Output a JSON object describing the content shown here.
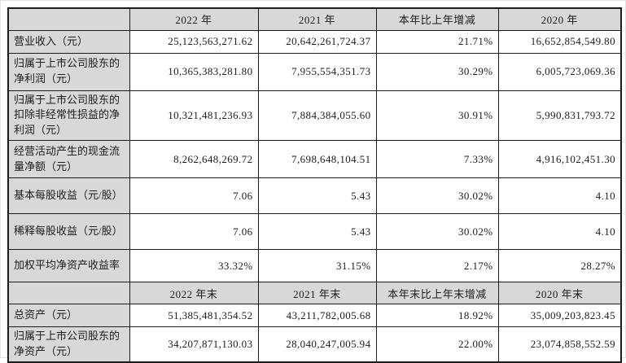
{
  "table": {
    "title_hint": "financial-summary-table",
    "colors": {
      "header_bg": "#d8d8d8",
      "label_bg": "#d8d8d8",
      "cell_bg": "#ffffff",
      "border": "#1c1c1c",
      "text": "#1c1c1c"
    },
    "sections": [
      {
        "header": {
          "label": "",
          "cols": [
            "2022 年",
            "2021 年",
            "本年比上年增减",
            "2020 年"
          ]
        },
        "rows": [
          {
            "label": "营业收入（元）",
            "values": [
              "25,123,563,271.62",
              "20,642,261,724.37",
              "21.71%",
              "16,652,854,549.80"
            ]
          },
          {
            "label": "归属于上市公司股东的净利润（元）",
            "values": [
              "10,365,383,281.80",
              "7,955,554,351.73",
              "30.29%",
              "6,005,723,069.36"
            ]
          },
          {
            "label": "归属于上市公司股东的扣除非经常性损益的净利润（元）",
            "values": [
              "10,321,481,236.93",
              "7,884,384,055.60",
              "30.91%",
              "5,990,831,793.72"
            ]
          },
          {
            "label": "经营活动产生的现金流量净额（元）",
            "values": [
              "8,262,648,269.72",
              "7,698,648,104.51",
              "7.33%",
              "4,916,102,451.30"
            ]
          },
          {
            "label": "基本每股收益（元/股）",
            "values": [
              "7.06",
              "5.43",
              "30.02%",
              "4.10"
            ]
          },
          {
            "label": "稀释每股收益（元/股）",
            "values": [
              "7.06",
              "5.43",
              "30.02%",
              "4.10"
            ]
          },
          {
            "label": "加权平均净资产收益率",
            "values": [
              "33.32%",
              "31.15%",
              "2.17%",
              "28.27%"
            ]
          }
        ]
      },
      {
        "header": {
          "label": "",
          "cols": [
            "2022 年末",
            "2021 年末",
            "本年末比上年末增减",
            "2020 年末"
          ]
        },
        "rows": [
          {
            "label": "总资产（元）",
            "values": [
              "51,385,481,354.52",
              "43,211,782,005.68",
              "18.92%",
              "35,009,203,823.45"
            ]
          },
          {
            "label": "归属于上市公司股东的净资产（元）",
            "values": [
              "34,207,871,130.03",
              "28,040,247,005.94",
              "22.00%",
              "23,074,858,552.59"
            ]
          }
        ]
      }
    ]
  }
}
